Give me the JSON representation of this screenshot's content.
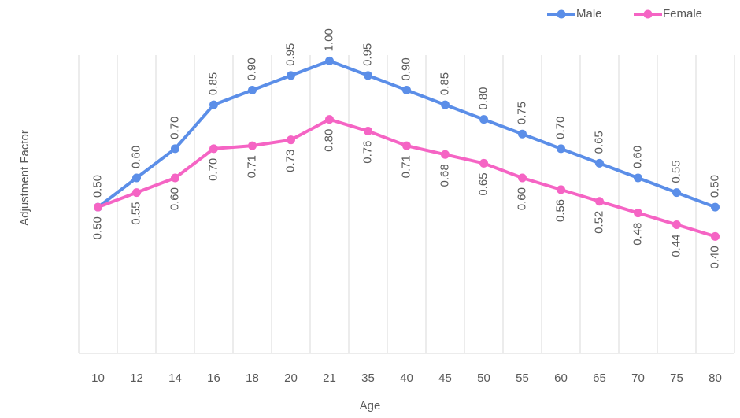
{
  "chart_data": {
    "type": "line",
    "categories": [
      "10",
      "12",
      "14",
      "16",
      "18",
      "20",
      "21",
      "35",
      "40",
      "45",
      "50",
      "55",
      "60",
      "65",
      "70",
      "75",
      "80"
    ],
    "series": [
      {
        "name": "Male",
        "color": "#5b8ee8",
        "values": [
          0.5,
          0.6,
          0.7,
          0.85,
          0.9,
          0.95,
          1.0,
          0.95,
          0.9,
          0.85,
          0.8,
          0.75,
          0.7,
          0.65,
          0.6,
          0.55,
          0.5
        ],
        "value_labels": [
          "0.50",
          "0.60",
          "0.70",
          "0.85",
          "0.90",
          "0.95",
          "1.00",
          "0.95",
          "0.90",
          "0.85",
          "0.80",
          "0.75",
          "0.70",
          "0.65",
          "0.60",
          "0.55",
          "0.50"
        ]
      },
      {
        "name": "Female",
        "color": "#f564c4",
        "values": [
          0.5,
          0.55,
          0.6,
          0.7,
          0.71,
          0.73,
          0.8,
          0.76,
          0.71,
          0.68,
          0.65,
          0.6,
          0.56,
          0.52,
          0.48,
          0.44,
          0.4
        ],
        "value_labels": [
          "0.50",
          "0.55",
          "0.60",
          "0.70",
          "0.71",
          "0.73",
          "0.80",
          "0.76",
          "0.71",
          "0.68",
          "0.65",
          "0.60",
          "0.56",
          "0.52",
          "0.48",
          "0.44",
          "0.40"
        ]
      }
    ],
    "x_label": "Age",
    "y_label": "Adjustment Factor",
    "ylim": [
      0,
      1.2
    ],
    "grid": true,
    "legend": "top-right"
  }
}
